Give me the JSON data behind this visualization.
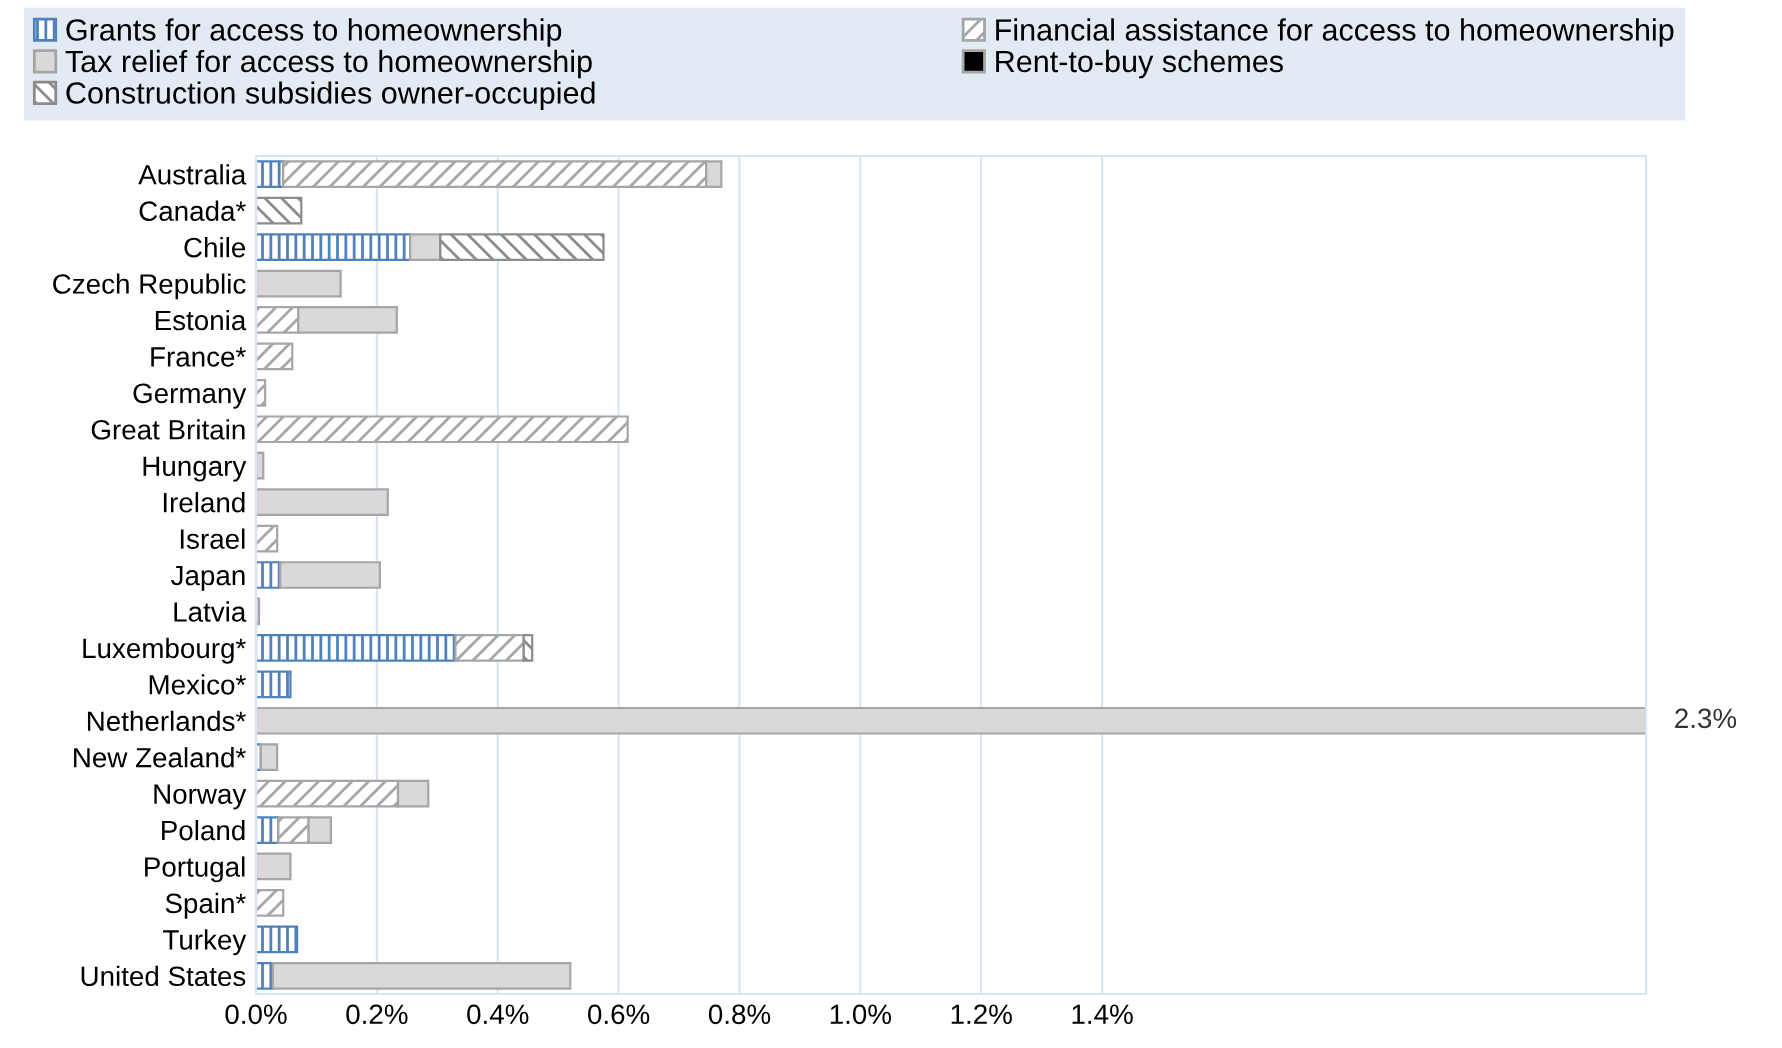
{
  "chart_data": {
    "type": "bar",
    "orientation": "horizontal",
    "stacked": true,
    "categories": [
      "Australia",
      "Canada*",
      "Chile",
      "Czech Republic",
      "Estonia",
      "France*",
      "Germany",
      "Great Britain",
      "Hungary",
      "Ireland",
      "Israel",
      "Japan",
      "Latvia",
      "Luxembourg*",
      "Mexico*",
      "Netherlands*",
      "New Zealand*",
      "Norway",
      "Poland",
      "Portugal",
      "Spain*",
      "Turkey",
      "United States"
    ],
    "series": [
      {
        "name": "Grants for access to homeownership",
        "color": "#4f81bd",
        "values": [
          0.045,
          null,
          0.255,
          null,
          null,
          null,
          null,
          null,
          null,
          null,
          null,
          0.04,
          null,
          0.33,
          0.057,
          null,
          0.008,
          null,
          0.037,
          null,
          null,
          0.068,
          0.028
        ]
      },
      {
        "name": "Financial assistance for access to homeownership",
        "color": "#a6a6a6",
        "values": [
          0.7,
          null,
          null,
          null,
          0.07,
          0.06,
          0.015,
          0.615,
          null,
          null,
          0.035,
          null,
          null,
          0.113,
          null,
          null,
          null,
          0.235,
          0.05,
          null,
          0.045,
          null,
          null
        ]
      },
      {
        "name": "Tax relief for access to homeownership",
        "color": "#d9d9d9",
        "values": [
          0.025,
          null,
          0.05,
          0.14,
          0.163,
          null,
          null,
          null,
          0.012,
          0.218,
          null,
          0.165,
          0.005,
          null,
          null,
          2.3,
          0.027,
          0.05,
          0.037,
          0.057,
          null,
          null,
          0.492
        ],
        "value_labels": [
          null,
          null,
          null,
          null,
          null,
          null,
          null,
          null,
          null,
          null,
          null,
          null,
          null,
          null,
          null,
          "2.3%",
          null,
          null,
          null,
          null,
          null,
          null,
          null
        ]
      },
      {
        "name": "Construction subsidies owner-occupied",
        "color": "#8c8c8c",
        "values": [
          null,
          0.075,
          0.27,
          null,
          null,
          null,
          null,
          null,
          null,
          null,
          null,
          null,
          null,
          0.014,
          null,
          null,
          null,
          null,
          null,
          null,
          null,
          null,
          null
        ]
      },
      {
        "name": "Rent-to-buy schemes",
        "color": "#000000",
        "values": [
          null,
          null,
          null,
          null,
          null,
          null,
          null,
          null,
          null,
          null,
          null,
          null,
          null,
          null,
          null,
          null,
          null,
          null,
          null,
          null,
          null,
          null,
          null
        ]
      }
    ],
    "xlim": [
      0,
      2.3
    ],
    "xticks": [
      {
        "value": 0,
        "label": "0.0%"
      },
      {
        "value": 0.2,
        "label": "0.2%"
      },
      {
        "value": 0.4,
        "label": "0.4%"
      },
      {
        "value": 0.6,
        "label": "0.6%"
      },
      {
        "value": 0.8,
        "label": "0.8%"
      },
      {
        "value": 1.0,
        "label": "1.0%"
      },
      {
        "value": 1.2,
        "label": "1.2%"
      },
      {
        "value": 1.4,
        "label": "1.4%"
      }
    ],
    "grid": "x",
    "legend": "top"
  }
}
